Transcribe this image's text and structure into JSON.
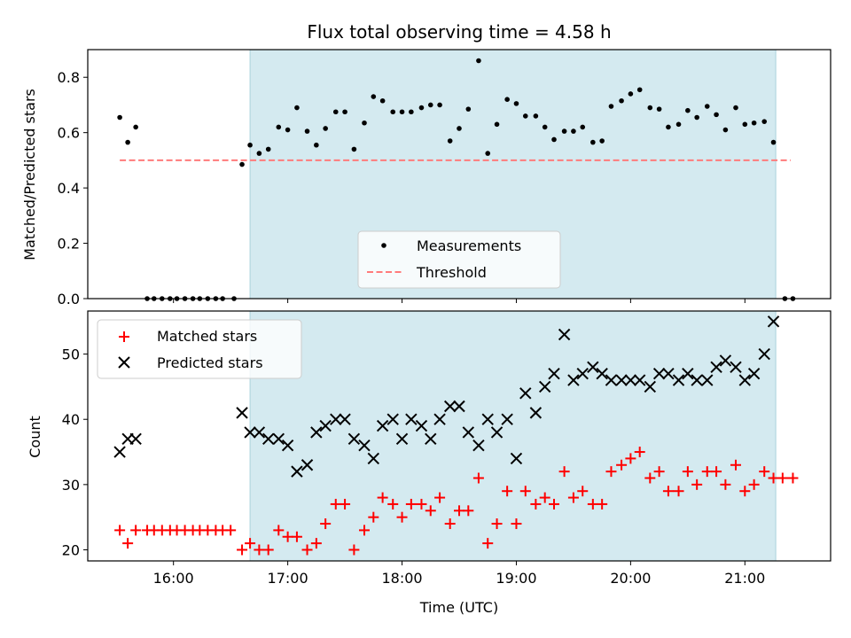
{
  "chart_data": {
    "type": "scatter",
    "title": "Flux total observing time = 4.58 h",
    "xlabel": "Time (UTC)",
    "x_ticks": [
      "16:00",
      "17:00",
      "18:00",
      "19:00",
      "20:00",
      "21:00"
    ],
    "x_range_hours": [
      15.25,
      21.75
    ],
    "shaded_interval_hours": [
      16.67,
      21.27
    ],
    "colors": {
      "measurement": "#000000",
      "threshold": "#ff7b7b",
      "matched": "#ff0000",
      "predicted": "#000000",
      "shade": "#d4eaf0"
    },
    "top": {
      "ylabel": "Matched/Predicted stars",
      "ylim": [
        0,
        0.9
      ],
      "y_ticks": [
        "0.0",
        "0.2",
        "0.4",
        "0.6",
        "0.8"
      ],
      "threshold": 0.5,
      "threshold_x_range": [
        15.53,
        21.4
      ],
      "legend": {
        "measurements": "Measurements",
        "threshold": "Threshold"
      },
      "measurements": [
        [
          15.53,
          0.655
        ],
        [
          15.6,
          0.565
        ],
        [
          15.67,
          0.62
        ],
        [
          15.77,
          0.0
        ],
        [
          15.83,
          0.0
        ],
        [
          15.9,
          0.0
        ],
        [
          15.97,
          0.0
        ],
        [
          16.03,
          0.0
        ],
        [
          16.1,
          0.0
        ],
        [
          16.17,
          0.0
        ],
        [
          16.23,
          0.0
        ],
        [
          16.3,
          0.0
        ],
        [
          16.37,
          0.0
        ],
        [
          16.43,
          0.0
        ],
        [
          16.53,
          0.0
        ],
        [
          16.6,
          0.485
        ],
        [
          16.67,
          0.555
        ],
        [
          16.75,
          0.525
        ],
        [
          16.83,
          0.54
        ],
        [
          16.92,
          0.62
        ],
        [
          17.0,
          0.61
        ],
        [
          17.08,
          0.69
        ],
        [
          17.17,
          0.605
        ],
        [
          17.25,
          0.555
        ],
        [
          17.33,
          0.615
        ],
        [
          17.42,
          0.675
        ],
        [
          17.5,
          0.675
        ],
        [
          17.58,
          0.54
        ],
        [
          17.67,
          0.635
        ],
        [
          17.75,
          0.73
        ],
        [
          17.83,
          0.715
        ],
        [
          17.92,
          0.675
        ],
        [
          18.0,
          0.675
        ],
        [
          18.08,
          0.675
        ],
        [
          18.17,
          0.69
        ],
        [
          18.25,
          0.7
        ],
        [
          18.33,
          0.7
        ],
        [
          18.42,
          0.57
        ],
        [
          18.5,
          0.615
        ],
        [
          18.58,
          0.685
        ],
        [
          18.67,
          0.86
        ],
        [
          18.75,
          0.525
        ],
        [
          18.83,
          0.63
        ],
        [
          18.92,
          0.72
        ],
        [
          19.0,
          0.705
        ],
        [
          19.08,
          0.66
        ],
        [
          19.17,
          0.66
        ],
        [
          19.25,
          0.62
        ],
        [
          19.33,
          0.575
        ],
        [
          19.42,
          0.605
        ],
        [
          19.5,
          0.605
        ],
        [
          19.58,
          0.62
        ],
        [
          19.67,
          0.565
        ],
        [
          19.75,
          0.57
        ],
        [
          19.83,
          0.695
        ],
        [
          19.92,
          0.715
        ],
        [
          20.0,
          0.74
        ],
        [
          20.08,
          0.755
        ],
        [
          20.17,
          0.69
        ],
        [
          20.25,
          0.685
        ],
        [
          20.33,
          0.62
        ],
        [
          20.42,
          0.63
        ],
        [
          20.5,
          0.68
        ],
        [
          20.58,
          0.655
        ],
        [
          20.67,
          0.695
        ],
        [
          20.75,
          0.665
        ],
        [
          20.83,
          0.61
        ],
        [
          20.92,
          0.69
        ],
        [
          21.0,
          0.63
        ],
        [
          21.08,
          0.635
        ],
        [
          21.17,
          0.64
        ],
        [
          21.25,
          0.565
        ],
        [
          21.35,
          0.0
        ],
        [
          21.42,
          0.0
        ]
      ]
    },
    "bottom": {
      "ylabel": "Count",
      "ylim": [
        18.3,
        56.6
      ],
      "y_ticks": [
        "20",
        "30",
        "40",
        "50"
      ],
      "legend": {
        "matched": "Matched stars",
        "predicted": "Predicted stars"
      },
      "matched": [
        [
          15.53,
          23
        ],
        [
          15.6,
          21
        ],
        [
          15.67,
          23
        ],
        [
          15.77,
          23
        ],
        [
          15.83,
          23
        ],
        [
          15.9,
          23
        ],
        [
          15.97,
          23
        ],
        [
          16.03,
          23
        ],
        [
          16.1,
          23
        ],
        [
          16.17,
          23
        ],
        [
          16.23,
          23
        ],
        [
          16.3,
          23
        ],
        [
          16.37,
          23
        ],
        [
          16.43,
          23
        ],
        [
          16.5,
          23
        ],
        [
          16.6,
          20
        ],
        [
          16.67,
          21
        ],
        [
          16.75,
          20
        ],
        [
          16.83,
          20
        ],
        [
          16.92,
          23
        ],
        [
          17.0,
          22
        ],
        [
          17.08,
          22
        ],
        [
          17.17,
          20
        ],
        [
          17.25,
          21
        ],
        [
          17.33,
          24
        ],
        [
          17.42,
          27
        ],
        [
          17.5,
          27
        ],
        [
          17.58,
          20
        ],
        [
          17.67,
          23
        ],
        [
          17.75,
          25
        ],
        [
          17.83,
          28
        ],
        [
          17.92,
          27
        ],
        [
          18.0,
          25
        ],
        [
          18.08,
          27
        ],
        [
          18.17,
          27
        ],
        [
          18.25,
          26
        ],
        [
          18.33,
          28
        ],
        [
          18.42,
          24
        ],
        [
          18.5,
          26
        ],
        [
          18.58,
          26
        ],
        [
          18.67,
          31
        ],
        [
          18.75,
          21
        ],
        [
          18.83,
          24
        ],
        [
          18.92,
          29
        ],
        [
          19.0,
          24
        ],
        [
          19.08,
          29
        ],
        [
          19.17,
          27
        ],
        [
          19.25,
          28
        ],
        [
          19.33,
          27
        ],
        [
          19.42,
          32
        ],
        [
          19.5,
          28
        ],
        [
          19.58,
          29
        ],
        [
          19.67,
          27
        ],
        [
          19.75,
          27
        ],
        [
          19.83,
          32
        ],
        [
          19.92,
          33
        ],
        [
          20.0,
          34
        ],
        [
          20.08,
          35
        ],
        [
          20.17,
          31
        ],
        [
          20.25,
          32
        ],
        [
          20.33,
          29
        ],
        [
          20.42,
          29
        ],
        [
          20.5,
          32
        ],
        [
          20.58,
          30
        ],
        [
          20.67,
          32
        ],
        [
          20.75,
          32
        ],
        [
          20.83,
          30
        ],
        [
          20.92,
          33
        ],
        [
          21.0,
          29
        ],
        [
          21.08,
          30
        ],
        [
          21.17,
          32
        ],
        [
          21.25,
          31
        ],
        [
          21.33,
          31
        ],
        [
          21.42,
          31
        ]
      ],
      "predicted": [
        [
          15.53,
          35
        ],
        [
          15.6,
          37
        ],
        [
          15.67,
          37
        ],
        [
          16.6,
          41
        ],
        [
          16.67,
          38
        ],
        [
          16.75,
          38
        ],
        [
          16.83,
          37
        ],
        [
          16.92,
          37
        ],
        [
          17.0,
          36
        ],
        [
          17.08,
          32
        ],
        [
          17.17,
          33
        ],
        [
          17.25,
          38
        ],
        [
          17.33,
          39
        ],
        [
          17.42,
          40
        ],
        [
          17.5,
          40
        ],
        [
          17.58,
          37
        ],
        [
          17.67,
          36
        ],
        [
          17.75,
          34
        ],
        [
          17.83,
          39
        ],
        [
          17.92,
          40
        ],
        [
          18.0,
          37
        ],
        [
          18.08,
          40
        ],
        [
          18.17,
          39
        ],
        [
          18.25,
          37
        ],
        [
          18.33,
          40
        ],
        [
          18.42,
          42
        ],
        [
          18.5,
          42
        ],
        [
          18.58,
          38
        ],
        [
          18.67,
          36
        ],
        [
          18.75,
          40
        ],
        [
          18.83,
          38
        ],
        [
          18.92,
          40
        ],
        [
          19.0,
          34
        ],
        [
          19.08,
          44
        ],
        [
          19.17,
          41
        ],
        [
          19.25,
          45
        ],
        [
          19.33,
          47
        ],
        [
          19.42,
          53
        ],
        [
          19.5,
          46
        ],
        [
          19.58,
          47
        ],
        [
          19.67,
          48
        ],
        [
          19.75,
          47
        ],
        [
          19.83,
          46
        ],
        [
          19.92,
          46
        ],
        [
          20.0,
          46
        ],
        [
          20.08,
          46
        ],
        [
          20.17,
          45
        ],
        [
          20.25,
          47
        ],
        [
          20.33,
          47
        ],
        [
          20.42,
          46
        ],
        [
          20.5,
          47
        ],
        [
          20.58,
          46
        ],
        [
          20.67,
          46
        ],
        [
          20.75,
          48
        ],
        [
          20.83,
          49
        ],
        [
          20.92,
          48
        ],
        [
          21.0,
          46
        ],
        [
          21.08,
          47
        ],
        [
          21.17,
          50
        ],
        [
          21.25,
          55
        ]
      ]
    }
  }
}
